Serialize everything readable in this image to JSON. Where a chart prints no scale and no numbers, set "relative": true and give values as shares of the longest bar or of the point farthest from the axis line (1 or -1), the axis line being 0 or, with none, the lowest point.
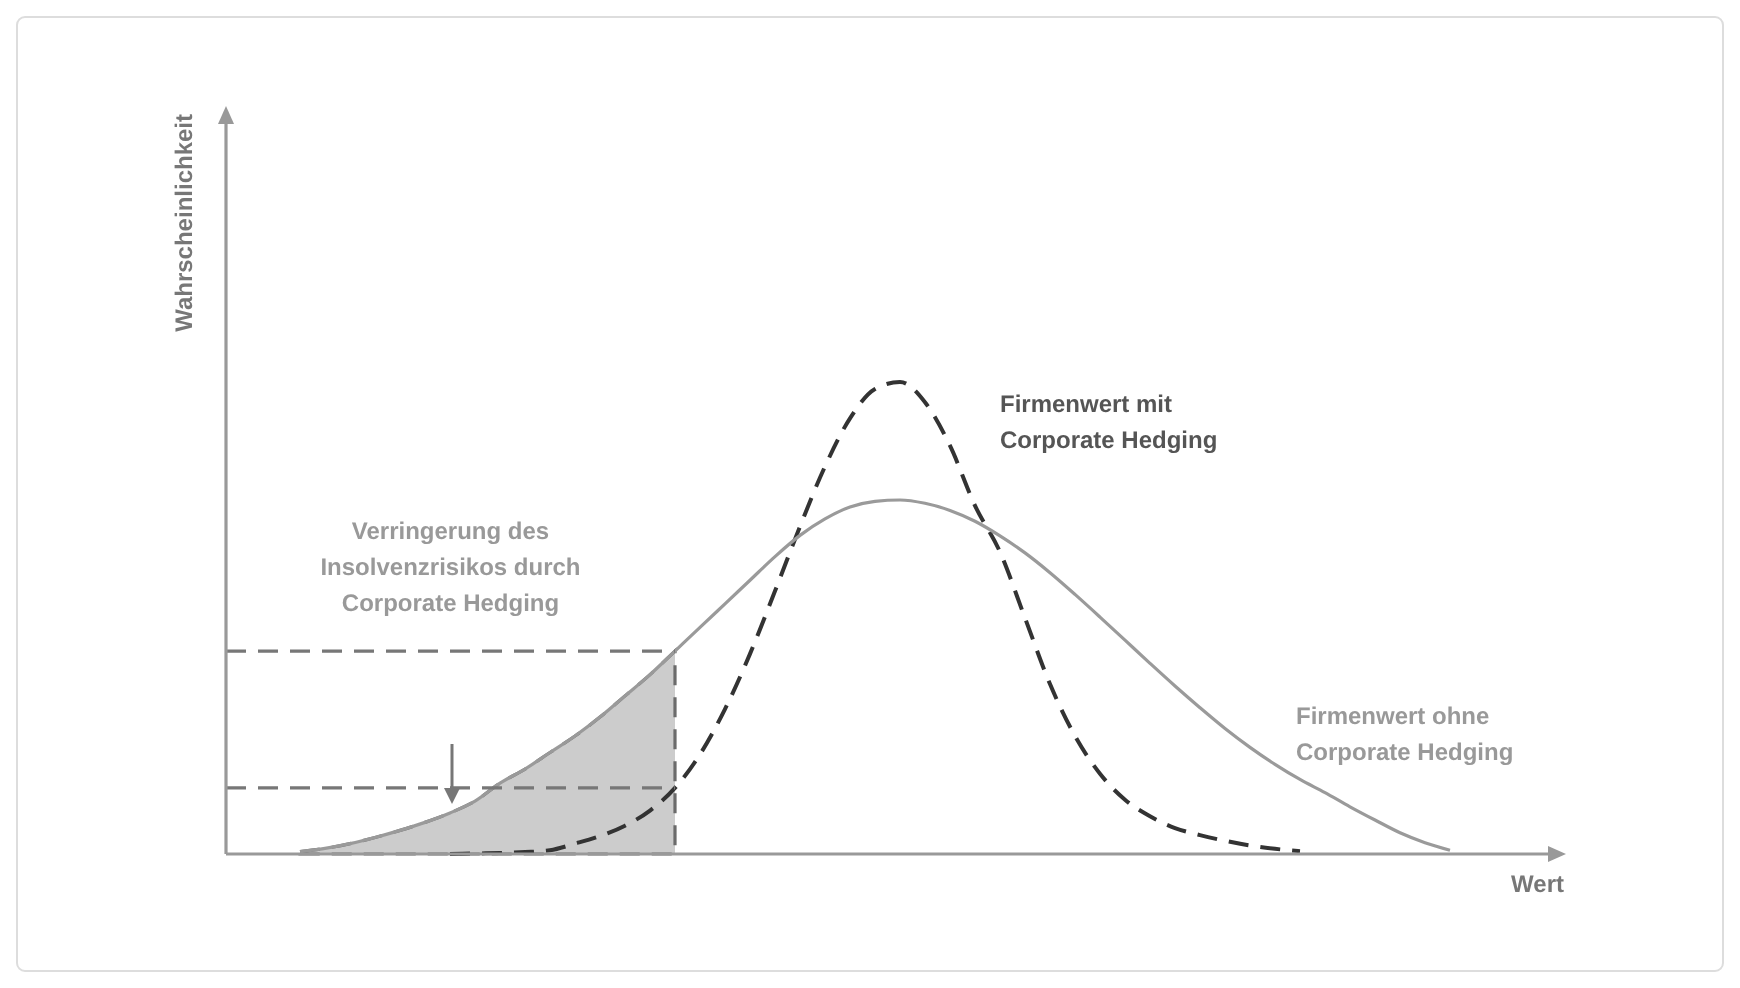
{
  "chart_data": {
    "type": "line",
    "relative": true,
    "xlabel": "Wert",
    "ylabel": "Wahrscheinlichkeit",
    "categories": [
      null,
      null,
      null,
      null,
      null,
      null,
      null,
      null,
      null,
      null,
      null,
      null,
      null,
      null,
      null,
      null,
      null,
      null,
      null,
      null,
      null,
      null,
      null,
      null,
      null,
      null,
      null,
      null,
      null,
      null,
      null,
      null,
      null,
      null,
      null,
      null,
      null,
      null,
      null,
      null,
      null,
      null,
      null,
      null,
      null,
      null,
      null
    ],
    "series": [
      {
        "name": "Firmenwert mit Corporate Hedging",
        "color": "#333333",
        "line_style": "dashed",
        "values": [
          null,
          null,
          null,
          null,
          null,
          null,
          0,
          0.001,
          0.002,
          0.004,
          0.008,
          0.022,
          0.038,
          0.06,
          0.092,
          0.14,
          0.211,
          0.307,
          0.424,
          0.557,
          0.694,
          0.821,
          0.923,
          0.985,
          1,
          0.957,
          0.865,
          0.738,
          0.64,
          0.5,
          0.36,
          0.25,
          0.17,
          0.115,
          0.08,
          0.055,
          0.04,
          0.028,
          0.018,
          0.011,
          0.006,
          null,
          null,
          null,
          null,
          null,
          null
        ]
      },
      {
        "name": "Firmenwert ohne Corporate Hedging",
        "color": "#9a9a9a",
        "values": [
          0.005,
          0.012,
          0.022,
          0.035,
          0.05,
          0.067,
          0.087,
          0.112,
          0.15,
          0.18,
          0.215,
          0.25,
          0.29,
          0.335,
          0.38,
          0.43,
          0.48,
          0.53,
          0.58,
          0.63,
          0.675,
          0.71,
          0.735,
          0.747,
          0.75,
          0.743,
          0.728,
          0.705,
          0.674,
          0.638,
          0.596,
          0.55,
          0.502,
          0.453,
          0.404,
          0.356,
          0.31,
          0.266,
          0.226,
          0.19,
          0.158,
          0.13,
          0.1,
          0.072,
          0.045,
          0.024,
          0.008
        ]
      },
      {
        "type": "area",
        "color": "#cccccc",
        "line_style": "dashed",
        "values": [
          0.005,
          0.012,
          0.022,
          0.035,
          0.05,
          0.067,
          0.087,
          0.112,
          0.15,
          0.18,
          0.215,
          0.25,
          0.29,
          0.335,
          0.38,
          0.43,
          null,
          null,
          null,
          null,
          null,
          null,
          null,
          null,
          null,
          null,
          null,
          null,
          null,
          null,
          null,
          null,
          null,
          null,
          null,
          null,
          null,
          null,
          null,
          null,
          null,
          null,
          null,
          null,
          null,
          null,
          null
        ]
      }
    ],
    "ref_lines": [
      {
        "axis": "y",
        "value": 0.43,
        "line_style": "dashed",
        "color": "#777777"
      },
      {
        "axis": "y",
        "value": 0.14,
        "line_style": "dashed",
        "color": "#777777"
      }
    ],
    "annotations": [
      "Verringerung des Insolvenzrisikos durch Corporate Hedging"
    ]
  }
}
